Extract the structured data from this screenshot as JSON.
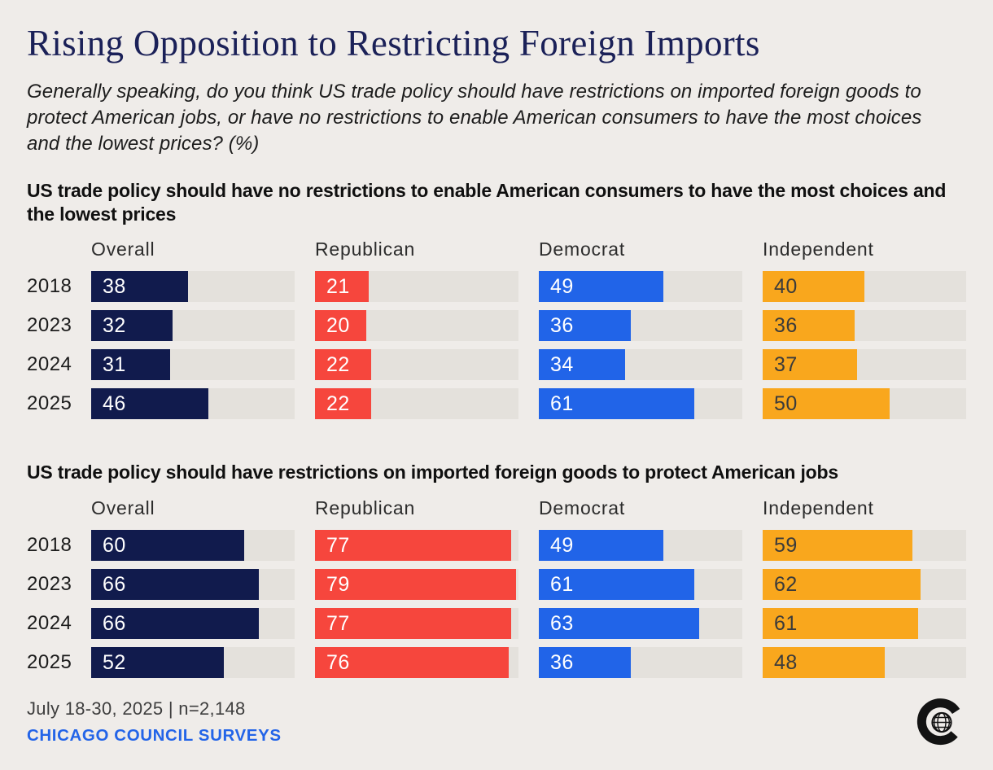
{
  "page": {
    "title": "Rising Opposition to Restricting Foreign Imports",
    "subtitle": "Generally speaking, do you think US trade policy should have restrictions on imported foreign goods to protect American jobs, or have no restrictions to enable American consumers to have the most choices and the lowest prices? (%)"
  },
  "colors": {
    "background": "#efece9",
    "bar_track": "#e4e1dc",
    "overall_navy": "#111b4d",
    "republican_red": "#f6463d",
    "democrat_blue": "#2164e8",
    "independent_orange": "#f9a71d",
    "title_navy": "#1b2158",
    "footer_link_blue": "#2364e8",
    "logo_black": "#131313"
  },
  "chart_data": [
    {
      "type": "bar",
      "title": "US trade policy should have no restrictions to enable American consumers to have the most choices and the lowest prices",
      "categories": [
        "2018",
        "2023",
        "2024",
        "2025"
      ],
      "series": [
        {
          "name": "Overall",
          "color": "#111b4d",
          "label_color": "#ffffff",
          "values": [
            38,
            32,
            31,
            46
          ]
        },
        {
          "name": "Republican",
          "color": "#f6463d",
          "label_color": "#ffffff",
          "values": [
            21,
            20,
            22,
            22
          ]
        },
        {
          "name": "Democrat",
          "color": "#2164e8",
          "label_color": "#ffffff",
          "values": [
            49,
            36,
            34,
            61
          ]
        },
        {
          "name": "Independent",
          "color": "#f9a71d",
          "label_color": "#3b3b3b",
          "values": [
            40,
            36,
            37,
            50
          ]
        }
      ],
      "xlim": [
        0,
        80
      ],
      "grid": false,
      "value_labels": "inside-left",
      "legend_position": "column-headers"
    },
    {
      "type": "bar",
      "title": "US trade policy should have restrictions on imported foreign goods to protect American jobs",
      "categories": [
        "2018",
        "2023",
        "2024",
        "2025"
      ],
      "series": [
        {
          "name": "Overall",
          "color": "#111b4d",
          "label_color": "#ffffff",
          "values": [
            60,
            66,
            66,
            52
          ]
        },
        {
          "name": "Republican",
          "color": "#f6463d",
          "label_color": "#ffffff",
          "values": [
            77,
            79,
            77,
            76
          ]
        },
        {
          "name": "Democrat",
          "color": "#2164e8",
          "label_color": "#ffffff",
          "values": [
            49,
            61,
            63,
            36
          ]
        },
        {
          "name": "Independent",
          "color": "#f9a71d",
          "label_color": "#3b3b3b",
          "values": [
            59,
            62,
            61,
            48
          ]
        }
      ],
      "xlim": [
        0,
        80
      ],
      "grid": false,
      "value_labels": "inside-left",
      "legend_position": "column-headers"
    }
  ],
  "footer": {
    "date_note": "July 18-30, 2025 | n=2,148",
    "org": "CHICAGO COUNCIL SURVEYS",
    "logo": "chicago-council-c-globe-logo"
  }
}
